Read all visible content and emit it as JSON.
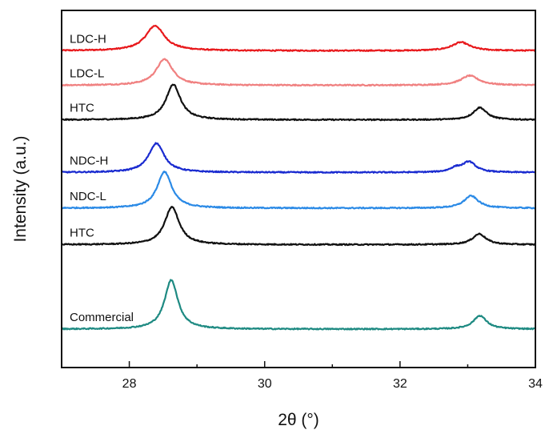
{
  "chart_data": {
    "type": "line",
    "title": "",
    "xlabel": "2θ  (°)",
    "ylabel": "Intensity (a.u.)",
    "xlim": [
      27,
      34
    ],
    "x_ticks": [
      28,
      30,
      32,
      34
    ],
    "y_ticks_shown": false,
    "grid": false,
    "legend": "none",
    "series": [
      {
        "name": "LDC-H",
        "color": "#e8191c",
        "baseline": 8.25,
        "peaks": [
          {
            "center": 28.38,
            "height": 0.65,
            "width": 0.17
          },
          {
            "center": 32.9,
            "height": 0.22,
            "width": 0.16
          }
        ]
      },
      {
        "name": "LDC-L",
        "color": "#f08080",
        "baseline": 7.35,
        "peaks": [
          {
            "center": 28.52,
            "height": 0.68,
            "width": 0.15
          },
          {
            "center": 33.03,
            "height": 0.25,
            "width": 0.16
          }
        ]
      },
      {
        "name": "HTC",
        "color": "#111111",
        "baseline": 6.45,
        "peaks": [
          {
            "center": 28.65,
            "height": 0.92,
            "width": 0.13
          },
          {
            "center": 33.18,
            "height": 0.32,
            "width": 0.12
          }
        ]
      },
      {
        "name": "NDC-H",
        "color": "#1a2bd0",
        "baseline": 5.08,
        "peaks": [
          {
            "center": 28.4,
            "height": 0.76,
            "width": 0.14
          },
          {
            "center": 33.02,
            "height": 0.27,
            "width": 0.12
          },
          {
            "center": 32.82,
            "height": 0.1,
            "width": 0.1
          }
        ]
      },
      {
        "name": "NDC-L",
        "color": "#2b8ae6",
        "baseline": 4.15,
        "peaks": [
          {
            "center": 28.52,
            "height": 0.95,
            "width": 0.13
          },
          {
            "center": 33.05,
            "height": 0.32,
            "width": 0.13
          }
        ]
      },
      {
        "name": "HTC",
        "color": "#111111",
        "baseline": 3.2,
        "peaks": [
          {
            "center": 28.63,
            "height": 0.98,
            "width": 0.13
          },
          {
            "center": 33.17,
            "height": 0.28,
            "width": 0.12
          }
        ]
      },
      {
        "name": "Commercial",
        "color": "#1e8a82",
        "baseline": 1.0,
        "peaks": [
          {
            "center": 28.62,
            "height": 1.28,
            "width": 0.12
          },
          {
            "center": 33.18,
            "height": 0.35,
            "width": 0.12
          }
        ]
      }
    ]
  }
}
